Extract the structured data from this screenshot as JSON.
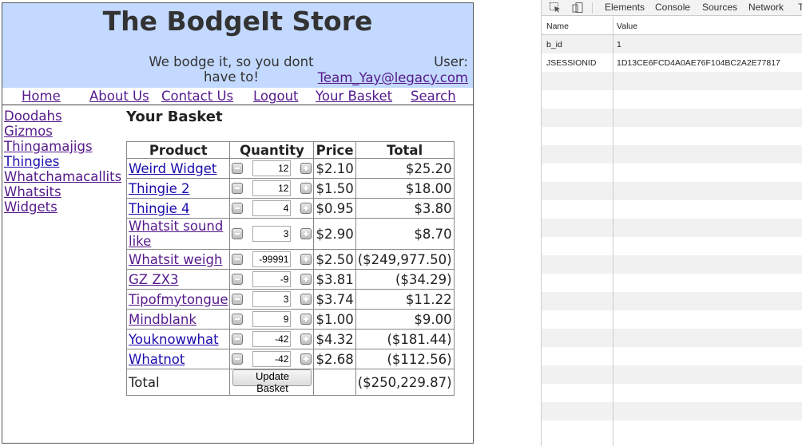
{
  "store": {
    "title": "The BodgeIt Store",
    "tagline": "We bodge it, so you dont have to!",
    "user_label": "User:",
    "user_email": "Team_Yay@legacy.com",
    "nav": [
      "Home",
      "About Us",
      "Contact Us",
      "Logout",
      "Your Basket",
      "Search"
    ],
    "categories": [
      "Doodahs",
      "Gizmos",
      "Thingamajigs",
      "Thingies",
      "Whatchamacallits",
      "Whatsits",
      "Widgets"
    ],
    "basket_heading": "Your Basket",
    "table_headers": [
      "Product",
      "Quantity",
      "Price",
      "Total"
    ],
    "items": [
      {
        "product": "Weird Widget",
        "qty": "12",
        "price": "$2.10",
        "total": "$25.20"
      },
      {
        "product": "Thingie 2",
        "qty": "12",
        "price": "$1.50",
        "total": "$18.00"
      },
      {
        "product": "Thingie 4",
        "qty": "4",
        "price": "$0.95",
        "total": "$3.80"
      },
      {
        "product": "Whatsit sound like",
        "qty": "3",
        "price": "$2.90",
        "total": "$8.70"
      },
      {
        "product": "Whatsit weigh",
        "qty": "-99991",
        "price": "$2.50",
        "total": "($249,977.50)"
      },
      {
        "product": "GZ ZX3",
        "qty": "-9",
        "price": "$3.81",
        "total": "($34.29)"
      },
      {
        "product": "Tipofmytongue",
        "qty": "3",
        "price": "$3.74",
        "total": "$11.22"
      },
      {
        "product": "Mindblank",
        "qty": "9",
        "price": "$1.00",
        "total": "$9.00"
      },
      {
        "product": "Youknowwhat",
        "qty": "-42",
        "price": "$4.32",
        "total": "($181.44)"
      },
      {
        "product": "Whatnot",
        "qty": "-42",
        "price": "$2.68",
        "total": "($112.56)"
      }
    ],
    "total_label": "Total",
    "update_button": "Update Basket",
    "grand_total": "($250,229.87)"
  },
  "devtools": {
    "tabs": [
      "Elements",
      "Console",
      "Sources",
      "Network",
      "T"
    ],
    "columns": [
      "Name",
      "Value"
    ],
    "cookies": [
      {
        "name": "b_id",
        "value": "1"
      },
      {
        "name": "JSESSIONID",
        "value": "1D13CE6FCD4A0AE76F104BC2A2E77817"
      }
    ],
    "icons": [
      "inspect-cursor-icon",
      "device-toolbar-icon"
    ]
  }
}
